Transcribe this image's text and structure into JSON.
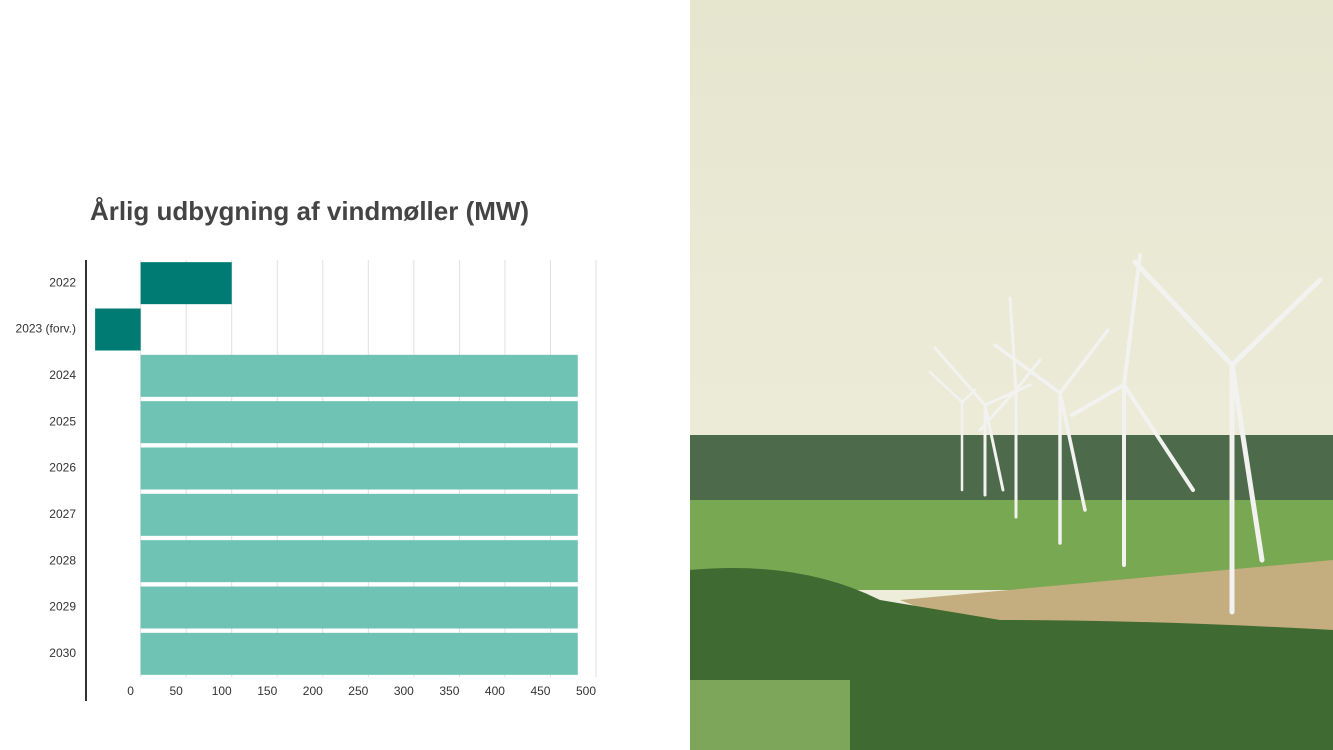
{
  "chart_data": {
    "type": "barh",
    "title": "Årlig udbygning af vindmøller (MW)",
    "categories": [
      "2022",
      "2023 (forv.)",
      "2024",
      "2025",
      "2026",
      "2027",
      "2028",
      "2029",
      "2030"
    ],
    "values": [
      100,
      -50,
      480,
      480,
      480,
      480,
      480,
      480,
      480
    ],
    "colors": [
      "#007b74",
      "#007b74",
      "#6fc3b5",
      "#6fc3b5",
      "#6fc3b5",
      "#6fc3b5",
      "#6fc3b5",
      "#6fc3b5",
      "#6fc3b5"
    ],
    "xlim": [
      -60,
      500
    ],
    "xticks": [
      0,
      50,
      100,
      150,
      200,
      250,
      300,
      350,
      400,
      450,
      500
    ],
    "grid": true
  }
}
